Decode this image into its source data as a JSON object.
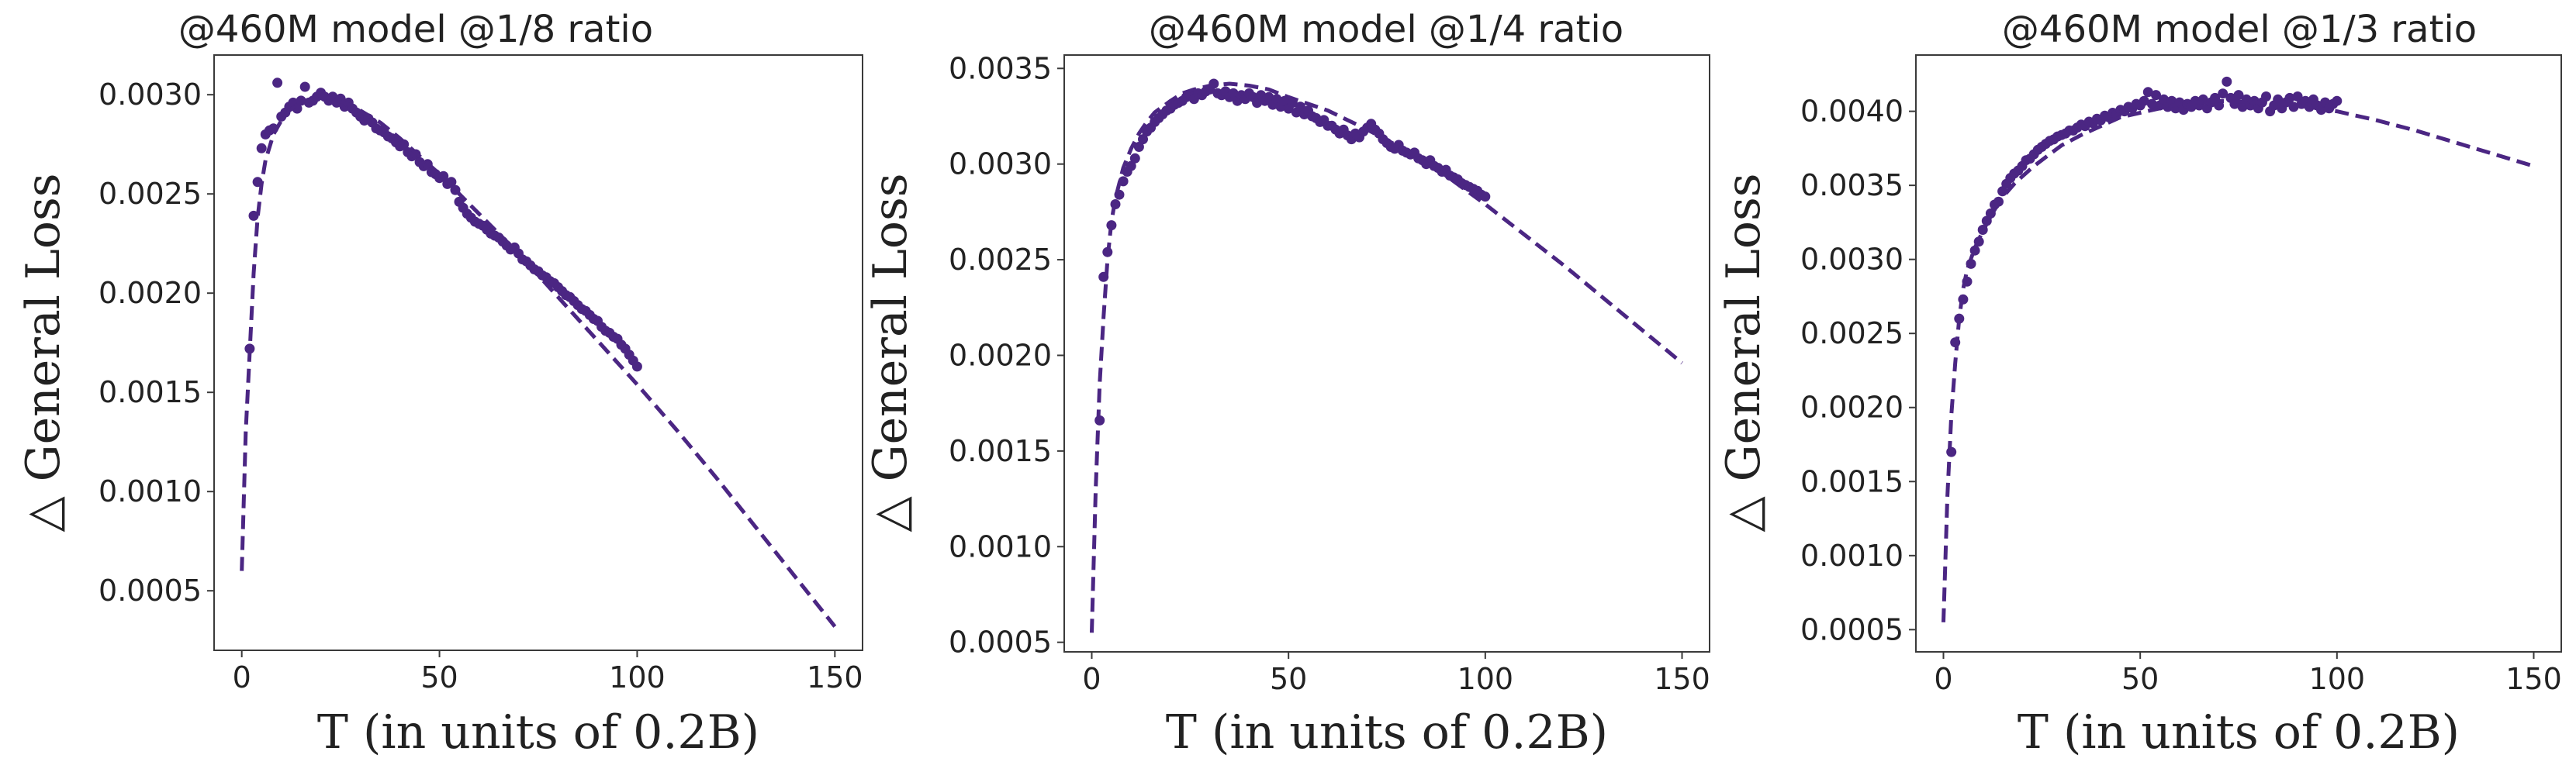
{
  "colors": {
    "series": "#4b2683",
    "axis": "#3a3a3a",
    "text": "#222222"
  },
  "chart_data": [
    {
      "type": "scatter",
      "title": "@460M model @1/8 ratio",
      "xlabel": "T (in units of 0.2B)",
      "ylabel": "△ General Loss",
      "xlim": [
        -7,
        157
      ],
      "ylim": [
        0.0002,
        0.0032
      ],
      "xticks": [
        0,
        50,
        100,
        150
      ],
      "xtick_labels": [
        "0",
        "50",
        "100",
        "150"
      ],
      "yticks": [
        0.0005,
        0.001,
        0.0015,
        0.002,
        0.0025,
        0.003
      ],
      "ytick_labels": [
        "0.0005",
        "0.0010",
        "0.0015",
        "0.0020",
        "0.0025",
        "0.0030"
      ],
      "grid": false,
      "series": [
        {
          "kind": "scatter",
          "x": [
            2,
            3,
            4,
            5,
            6,
            7,
            8,
            9,
            10,
            11,
            12,
            13,
            14,
            15,
            16,
            17,
            18,
            19,
            20,
            21,
            22,
            23,
            24,
            25,
            26,
            27,
            28,
            29,
            30,
            31,
            32,
            33,
            34,
            35,
            36,
            37,
            38,
            39,
            40,
            41,
            42,
            43,
            44,
            45,
            46,
            47,
            48,
            49,
            50,
            51,
            52,
            53,
            54,
            55,
            56,
            57,
            58,
            59,
            60,
            61,
            62,
            63,
            64,
            65,
            66,
            67,
            68,
            69,
            70,
            71,
            72,
            73,
            74,
            75,
            76,
            77,
            78,
            79,
            80,
            81,
            82,
            83,
            84,
            85,
            86,
            87,
            88,
            89,
            90,
            91,
            92,
            93,
            94,
            95,
            96,
            97,
            98,
            99,
            100
          ],
          "y": [
            0.00172,
            0.00239,
            0.00256,
            0.00273,
            0.0028,
            0.00282,
            0.00283,
            0.00306,
            0.00289,
            0.00291,
            0.00294,
            0.00296,
            0.00293,
            0.00297,
            0.00304,
            0.00296,
            0.00297,
            0.00299,
            0.00301,
            0.00299,
            0.00297,
            0.00299,
            0.00296,
            0.00298,
            0.00294,
            0.00296,
            0.00293,
            0.00291,
            0.00289,
            0.00287,
            0.00288,
            0.00286,
            0.00283,
            0.00282,
            0.00281,
            0.00279,
            0.00278,
            0.00276,
            0.00274,
            0.00275,
            0.00271,
            0.00269,
            0.0027,
            0.00266,
            0.00264,
            0.00265,
            0.00261,
            0.0026,
            0.00258,
            0.00259,
            0.00255,
            0.00256,
            0.00252,
            0.00246,
            0.00243,
            0.0024,
            0.00238,
            0.00236,
            0.00235,
            0.00234,
            0.00232,
            0.0023,
            0.00229,
            0.00228,
            0.00226,
            0.00224,
            0.00222,
            0.00223,
            0.0022,
            0.00217,
            0.00216,
            0.00214,
            0.00212,
            0.00211,
            0.00209,
            0.00208,
            0.00206,
            0.00205,
            0.00203,
            0.00201,
            0.00199,
            0.00198,
            0.00196,
            0.00194,
            0.00192,
            0.00191,
            0.00189,
            0.00187,
            0.00186,
            0.00183,
            0.00181,
            0.0018,
            0.00178,
            0.00177,
            0.00174,
            0.00172,
            0.00169,
            0.00166,
            0.00163
          ]
        },
        {
          "kind": "dashed-line",
          "x": [
            0,
            1,
            2,
            3,
            4,
            5,
            6,
            8,
            10,
            12,
            14,
            16,
            18,
            20,
            23,
            26,
            30,
            35,
            40,
            45,
            50,
            60,
            70,
            80,
            90,
            100,
            110,
            120,
            130,
            140,
            150
          ],
          "y": [
            0.0006,
            0.0013,
            0.0017,
            0.0021,
            0.00238,
            0.00255,
            0.00267,
            0.0028,
            0.00287,
            0.00292,
            0.00295,
            0.00297,
            0.00298,
            0.00299,
            0.00298,
            0.00296,
            0.00292,
            0.00286,
            0.00278,
            0.00269,
            0.0026,
            0.0024,
            0.0022,
            0.00198,
            0.00176,
            0.00154,
            0.00131,
            0.00107,
            0.00082,
            0.00057,
            0.00032
          ]
        }
      ]
    },
    {
      "type": "scatter",
      "title": "@460M model @1/4 ratio",
      "xlabel": "T (in units of 0.2B)",
      "ylabel": "△ General Loss",
      "xlim": [
        -7,
        157
      ],
      "ylim": [
        0.00045,
        0.00357
      ],
      "xticks": [
        0,
        50,
        100,
        150
      ],
      "xtick_labels": [
        "0",
        "50",
        "100",
        "150"
      ],
      "yticks": [
        0.0005,
        0.001,
        0.0015,
        0.002,
        0.0025,
        0.003,
        0.0035
      ],
      "ytick_labels": [
        "0.0005",
        "0.0010",
        "0.0015",
        "0.0020",
        "0.0025",
        "0.0030",
        "0.0035"
      ],
      "grid": false,
      "series": [
        {
          "kind": "scatter",
          "x": [
            2,
            3,
            4,
            5,
            6,
            7,
            8,
            9,
            10,
            11,
            12,
            13,
            14,
            15,
            16,
            17,
            18,
            19,
            20,
            21,
            22,
            23,
            24,
            25,
            26,
            27,
            28,
            29,
            30,
            31,
            32,
            33,
            34,
            35,
            36,
            37,
            38,
            39,
            40,
            41,
            42,
            43,
            44,
            45,
            46,
            47,
            48,
            49,
            50,
            51,
            52,
            53,
            54,
            55,
            56,
            57,
            58,
            59,
            60,
            61,
            62,
            63,
            64,
            65,
            66,
            67,
            68,
            69,
            70,
            71,
            72,
            73,
            74,
            75,
            76,
            77,
            78,
            79,
            80,
            81,
            82,
            83,
            84,
            85,
            86,
            87,
            88,
            89,
            90,
            91,
            92,
            93,
            94,
            95,
            96,
            97,
            98,
            99,
            100
          ],
          "y": [
            0.00166,
            0.00241,
            0.00254,
            0.00268,
            0.00279,
            0.00284,
            0.00291,
            0.00296,
            0.00299,
            0.00303,
            0.00309,
            0.00313,
            0.00317,
            0.00319,
            0.00322,
            0.00324,
            0.00326,
            0.00328,
            0.00329,
            0.00331,
            0.00332,
            0.00333,
            0.00335,
            0.00336,
            0.00334,
            0.00337,
            0.00336,
            0.00338,
            0.00339,
            0.00342,
            0.00337,
            0.00336,
            0.00338,
            0.00335,
            0.00337,
            0.00333,
            0.00336,
            0.00334,
            0.00337,
            0.00335,
            0.00332,
            0.00336,
            0.00333,
            0.00335,
            0.00331,
            0.00334,
            0.0033,
            0.00333,
            0.00329,
            0.00332,
            0.00327,
            0.0033,
            0.00326,
            0.00328,
            0.00325,
            0.00324,
            0.00322,
            0.00323,
            0.0032,
            0.0032,
            0.00318,
            0.00316,
            0.00318,
            0.00315,
            0.00313,
            0.00316,
            0.00314,
            0.00317,
            0.00319,
            0.00321,
            0.00318,
            0.00316,
            0.00313,
            0.00311,
            0.00309,
            0.00308,
            0.0031,
            0.00307,
            0.00306,
            0.00305,
            0.00306,
            0.00303,
            0.00302,
            0.003,
            0.00302,
            0.00299,
            0.00298,
            0.00296,
            0.00297,
            0.00294,
            0.00293,
            0.00292,
            0.0029,
            0.00289,
            0.00288,
            0.00287,
            0.00286,
            0.00284,
            0.00283
          ]
        },
        {
          "kind": "dashed-line",
          "x": [
            0,
            1,
            2,
            3,
            4,
            5,
            6,
            8,
            10,
            12,
            14,
            16,
            18,
            20,
            23,
            26,
            30,
            35,
            40,
            45,
            50,
            60,
            70,
            80,
            90,
            100,
            110,
            120,
            130,
            140,
            150
          ],
          "y": [
            0.00055,
            0.0013,
            0.00185,
            0.0022,
            0.0025,
            0.0027,
            0.00282,
            0.00298,
            0.00308,
            0.00316,
            0.00322,
            0.00327,
            0.0033,
            0.00333,
            0.00337,
            0.00339,
            0.00341,
            0.00342,
            0.00341,
            0.00339,
            0.00335,
            0.00328,
            0.00318,
            0.00307,
            0.00294,
            0.00279,
            0.00263,
            0.00247,
            0.0023,
            0.00213,
            0.00196
          ]
        }
      ]
    },
    {
      "type": "scatter",
      "title": "@460M model @1/3 ratio",
      "xlabel": "T (in units of 0.2B)",
      "ylabel": "△ General Loss",
      "xlim": [
        -7,
        157
      ],
      "ylim": [
        0.00035,
        0.00438
      ],
      "xticks": [
        0,
        50,
        100,
        150
      ],
      "xtick_labels": [
        "0",
        "50",
        "100",
        "150"
      ],
      "yticks": [
        0.0005,
        0.001,
        0.0015,
        0.002,
        0.0025,
        0.003,
        0.0035,
        0.004
      ],
      "ytick_labels": [
        "0.0005",
        "0.0010",
        "0.0015",
        "0.0020",
        "0.0025",
        "0.0030",
        "0.0035",
        "0.0040"
      ],
      "grid": false,
      "series": [
        {
          "kind": "scatter",
          "x": [
            2,
            3,
            4,
            5,
            6,
            7,
            8,
            9,
            10,
            11,
            12,
            13,
            14,
            15,
            16,
            17,
            18,
            19,
            20,
            21,
            22,
            23,
            24,
            25,
            26,
            27,
            28,
            29,
            30,
            31,
            32,
            33,
            34,
            35,
            36,
            37,
            38,
            39,
            40,
            41,
            42,
            43,
            44,
            45,
            46,
            47,
            48,
            49,
            50,
            51,
            52,
            53,
            54,
            55,
            56,
            57,
            58,
            59,
            60,
            61,
            62,
            63,
            64,
            65,
            66,
            67,
            68,
            69,
            70,
            71,
            72,
            73,
            74,
            75,
            76,
            77,
            78,
            79,
            80,
            81,
            82,
            83,
            84,
            85,
            86,
            87,
            88,
            89,
            90,
            91,
            92,
            93,
            94,
            95,
            96,
            97,
            98,
            99,
            100
          ],
          "y": [
            0.0017,
            0.00244,
            0.0026,
            0.00273,
            0.00285,
            0.00297,
            0.00306,
            0.00312,
            0.0032,
            0.00326,
            0.00331,
            0.00337,
            0.00339,
            0.00346,
            0.00351,
            0.00355,
            0.00358,
            0.0036,
            0.00363,
            0.00367,
            0.00368,
            0.00371,
            0.00374,
            0.00376,
            0.00378,
            0.0038,
            0.00381,
            0.00383,
            0.00384,
            0.00385,
            0.00387,
            0.00387,
            0.00389,
            0.00391,
            0.0039,
            0.00393,
            0.00392,
            0.00395,
            0.00394,
            0.00397,
            0.00396,
            0.00399,
            0.00398,
            0.00401,
            0.004,
            0.00403,
            0.00402,
            0.00405,
            0.00404,
            0.00407,
            0.00413,
            0.00405,
            0.00411,
            0.00404,
            0.00408,
            0.00403,
            0.00407,
            0.00402,
            0.00406,
            0.00401,
            0.00405,
            0.00403,
            0.00407,
            0.00404,
            0.00408,
            0.00402,
            0.00406,
            0.00409,
            0.00404,
            0.00412,
            0.0042,
            0.00409,
            0.00405,
            0.00411,
            0.00403,
            0.00408,
            0.00404,
            0.00407,
            0.00402,
            0.00406,
            0.0041,
            0.004,
            0.00404,
            0.00408,
            0.00402,
            0.00406,
            0.00409,
            0.00403,
            0.0041,
            0.00405,
            0.00407,
            0.00403,
            0.00408,
            0.00404,
            0.00401,
            0.00406,
            0.00402,
            0.00405,
            0.00407
          ]
        },
        {
          "kind": "dashed-line",
          "x": [
            0,
            1,
            2,
            3,
            4,
            5,
            6,
            8,
            10,
            12,
            14,
            16,
            18,
            20,
            23,
            26,
            30,
            35,
            40,
            45,
            50,
            60,
            70,
            80,
            90,
            100,
            110,
            120,
            130,
            140,
            150
          ],
          "y": [
            0.00055,
            0.0014,
            0.00195,
            0.0023,
            0.0026,
            0.0028,
            0.00293,
            0.00308,
            0.00319,
            0.00329,
            0.00338,
            0.00345,
            0.00351,
            0.00356,
            0.00363,
            0.00369,
            0.00377,
            0.00384,
            0.0039,
            0.00396,
            0.00399,
            0.00405,
            0.00407,
            0.00406,
            0.00404,
            0.004,
            0.00394,
            0.00387,
            0.00379,
            0.00371,
            0.00363
          ]
        }
      ]
    }
  ]
}
